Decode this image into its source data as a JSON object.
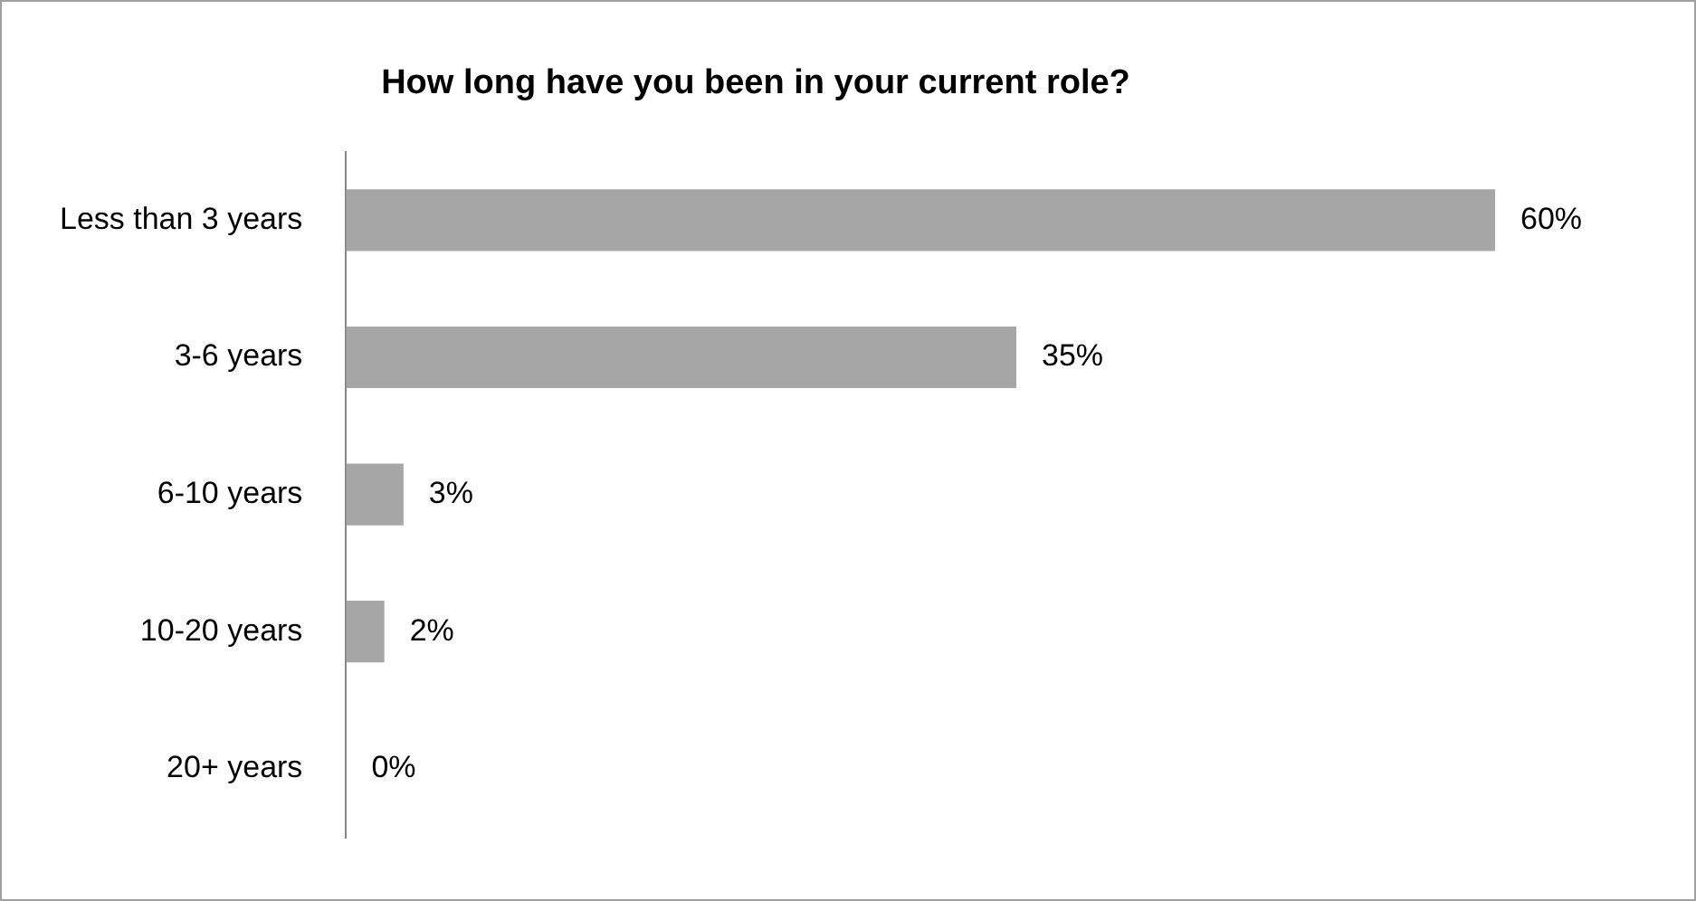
{
  "chart_data": {
    "type": "bar",
    "orientation": "horizontal",
    "title": "How long have you been in your current role?",
    "categories": [
      "Less than 3 years",
      "3-6 years",
      "6-10 years",
      "10-20 years",
      "20+ years"
    ],
    "values": [
      60,
      35,
      3,
      2,
      0
    ],
    "value_labels": [
      "60%",
      "35%",
      "3%",
      "2%",
      "0%"
    ],
    "color": "#a6a6a6",
    "legend": false
  }
}
